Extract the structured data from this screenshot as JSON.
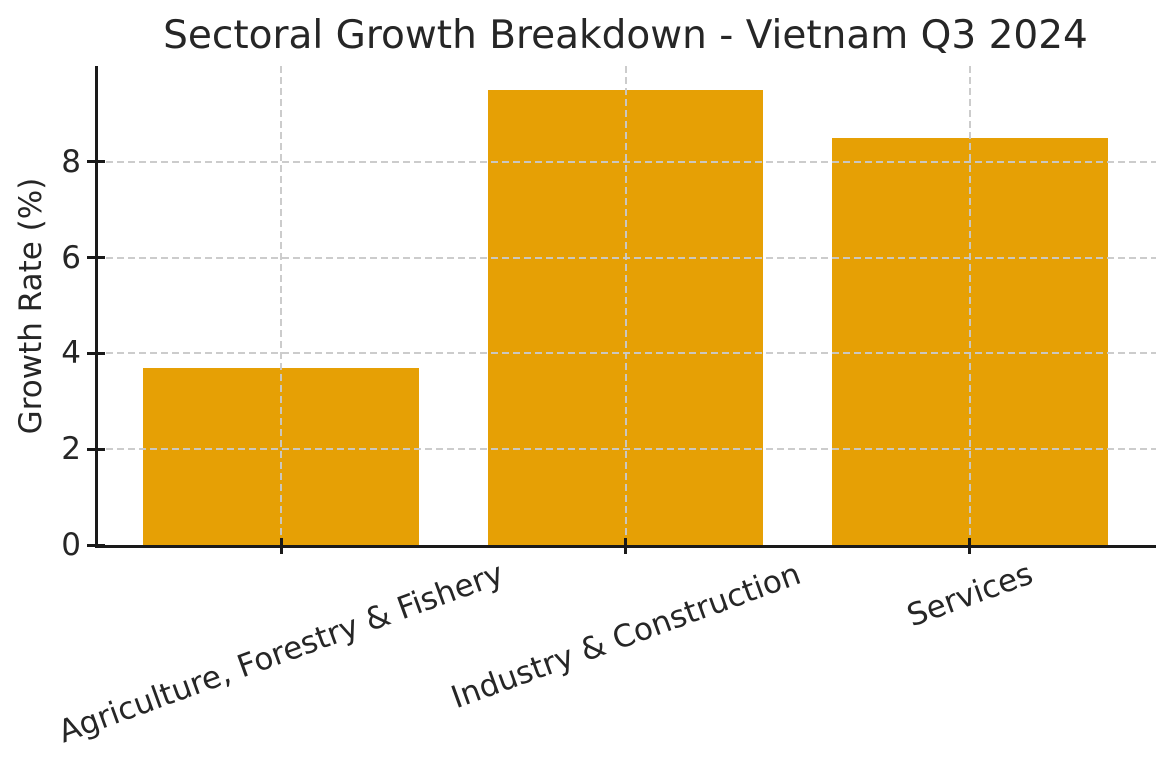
{
  "chart_data": {
    "type": "bar",
    "title": "Sectoral Growth Breakdown - Vietnam Q3 2024",
    "ylabel": "Growth Rate (%)",
    "categories": [
      "Agriculture, Forestry & Fishery",
      "Industry & Construction",
      "Services"
    ],
    "values": [
      3.7,
      9.5,
      8.5
    ],
    "yticks": [
      0,
      2,
      4,
      6,
      8
    ],
    "ylim": [
      0,
      10
    ],
    "xlim": [
      -0.54,
      2.54
    ],
    "bar_width_units": 0.8,
    "x_tick_rotation_deg": 20,
    "grid": {
      "style": "dashed",
      "horizontal": true,
      "vertical": true,
      "over_bars": true
    },
    "legend": "none",
    "colors": {
      "bar": "#E6A005",
      "grid": "#c9c9c9",
      "spine": "#1a1a1a",
      "text": "#262626",
      "background": "#ffffff"
    }
  }
}
